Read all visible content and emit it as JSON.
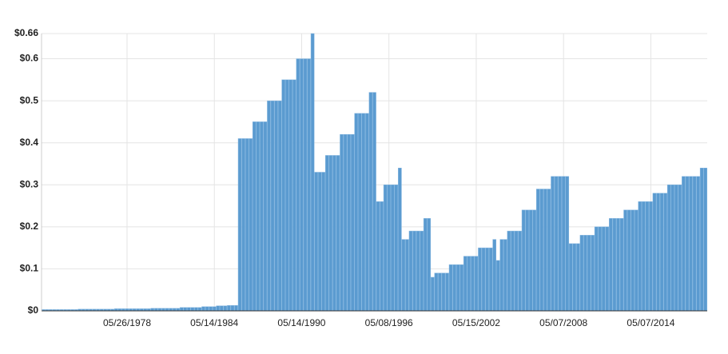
{
  "chart_data": {
    "type": "bar",
    "categories": [
      null,
      null,
      null,
      null,
      null,
      null,
      null,
      null,
      null,
      null,
      null,
      null,
      null,
      null,
      null,
      null,
      null,
      null,
      null,
      null,
      null,
      null,
      null,
      "05/26/1978",
      null,
      null,
      null,
      null,
      null,
      null,
      null,
      null,
      null,
      null,
      null,
      null,
      null,
      null,
      null,
      null,
      null,
      null,
      null,
      null,
      null,
      null,
      null,
      "05/14/1984",
      null,
      null,
      null,
      null,
      null,
      null,
      null,
      null,
      null,
      null,
      null,
      null,
      null,
      null,
      null,
      null,
      null,
      null,
      null,
      null,
      null,
      null,
      null,
      "05/14/1990",
      null,
      null,
      null,
      null,
      null,
      null,
      null,
      null,
      null,
      null,
      null,
      null,
      null,
      null,
      null,
      null,
      null,
      null,
      null,
      null,
      null,
      null,
      null,
      "05/08/1996",
      null,
      null,
      null,
      null,
      null,
      null,
      null,
      null,
      null,
      null,
      null,
      null,
      null,
      null,
      null,
      null,
      null,
      null,
      null,
      null,
      null,
      null,
      null,
      "05/15/2002",
      null,
      null,
      null,
      null,
      null,
      null,
      null,
      null,
      null,
      null,
      null,
      null,
      null,
      null,
      null,
      null,
      null,
      null,
      null,
      null,
      null,
      null,
      null,
      "05/07/2008",
      null,
      null,
      null,
      null,
      null,
      null,
      null,
      null,
      null,
      null,
      null,
      null,
      null,
      null,
      null,
      null,
      null,
      null,
      null,
      null,
      null,
      null,
      null,
      "05/07/2014",
      null,
      null,
      null,
      null,
      null,
      null,
      null,
      null,
      null,
      null,
      null,
      null,
      null,
      null,
      null
    ],
    "values": [
      0.003,
      0.003,
      0.003,
      0.003,
      0.003,
      0.003,
      0.003,
      0.003,
      0.003,
      0.003,
      0.004,
      0.004,
      0.004,
      0.004,
      0.004,
      0.004,
      0.004,
      0.004,
      0.004,
      0.004,
      0.005,
      0.005,
      0.005,
      0.005,
      0.005,
      0.005,
      0.005,
      0.005,
      0.005,
      0.005,
      0.006,
      0.006,
      0.006,
      0.006,
      0.006,
      0.006,
      0.006,
      0.006,
      0.008,
      0.008,
      0.008,
      0.008,
      0.008,
      0.008,
      0.01,
      0.01,
      0.01,
      0.01,
      0.012,
      0.012,
      0.012,
      0.013,
      0.013,
      0.013,
      0.41,
      0.41,
      0.41,
      0.41,
      0.45,
      0.45,
      0.45,
      0.45,
      0.5,
      0.5,
      0.5,
      0.5,
      0.55,
      0.55,
      0.55,
      0.55,
      0.6,
      0.6,
      0.6,
      0.6,
      0.66,
      0.33,
      0.33,
      0.33,
      0.37,
      0.37,
      0.37,
      0.37,
      0.42,
      0.42,
      0.42,
      0.42,
      0.47,
      0.47,
      0.47,
      0.47,
      0.52,
      0.52,
      0.26,
      0.26,
      0.3,
      0.3,
      0.3,
      0.3,
      0.34,
      0.17,
      0.17,
      0.19,
      0.19,
      0.19,
      0.19,
      0.22,
      0.22,
      0.08,
      0.09,
      0.09,
      0.09,
      0.09,
      0.11,
      0.11,
      0.11,
      0.11,
      0.13,
      0.13,
      0.13,
      0.13,
      0.15,
      0.15,
      0.15,
      0.15,
      0.17,
      0.12,
      0.17,
      0.17,
      0.19,
      0.19,
      0.19,
      0.19,
      0.24,
      0.24,
      0.24,
      0.24,
      0.29,
      0.29,
      0.29,
      0.29,
      0.32,
      0.32,
      0.32,
      0.32,
      0.32,
      0.16,
      0.16,
      0.16,
      0.18,
      0.18,
      0.18,
      0.18,
      0.2,
      0.2,
      0.2,
      0.2,
      0.22,
      0.22,
      0.22,
      0.22,
      0.24,
      0.24,
      0.24,
      0.24,
      0.26,
      0.26,
      0.26,
      0.26,
      0.28,
      0.28,
      0.28,
      0.28,
      0.3,
      0.3,
      0.3,
      0.3,
      0.32,
      0.32,
      0.32,
      0.32,
      0.32,
      0.34,
      0.34
    ],
    "color": "#5b9bd0",
    "ylim": [
      0,
      0.66
    ],
    "yticks": [
      {
        "value": 0,
        "label": "$0"
      },
      {
        "value": 0.1,
        "label": "$0.1"
      },
      {
        "value": 0.2,
        "label": "$0.2"
      },
      {
        "value": 0.3,
        "label": "$0.3"
      },
      {
        "value": 0.4,
        "label": "$0.4"
      },
      {
        "value": 0.5,
        "label": "$0.5"
      },
      {
        "value": 0.6,
        "label": "$0.6"
      },
      {
        "value": 0.66,
        "label": "$0.66"
      }
    ],
    "grid": true
  }
}
